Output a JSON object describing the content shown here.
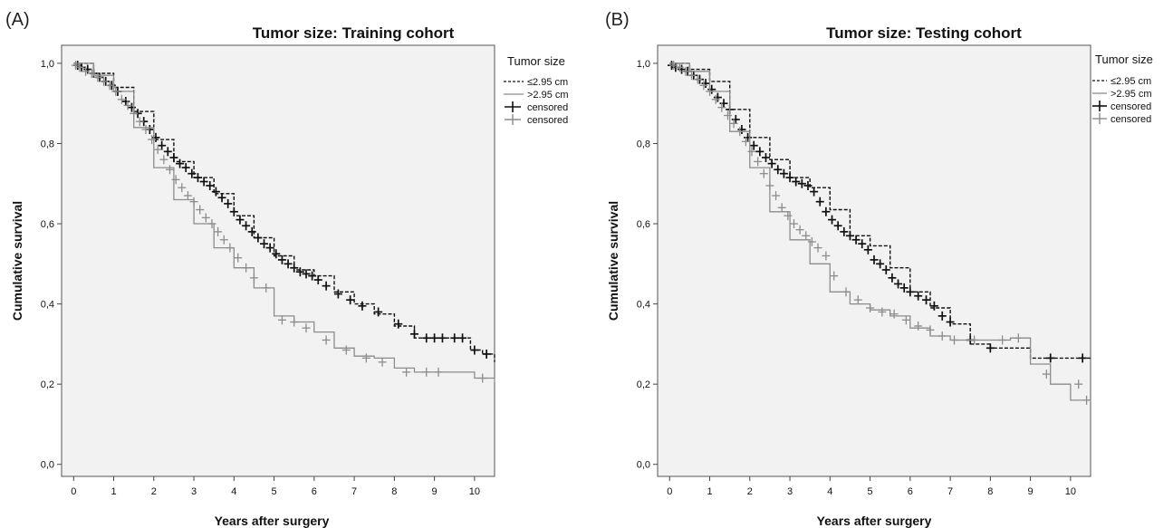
{
  "chart_data": [
    {
      "type": "line",
      "panel_label": "(A)",
      "title": "Tumor size: Training cohort",
      "xlabel": "Years after surgery",
      "ylabel": "Cumulative survival",
      "xlim": [
        -0.3,
        10.5
      ],
      "ylim": [
        -0.03,
        1.045
      ],
      "x_ticks": [
        "0",
        "1",
        "2",
        "3",
        "4",
        "5",
        "6",
        "7",
        "8",
        "9",
        "10"
      ],
      "y_ticks": [
        "0,0",
        "0,2",
        "0,4",
        "0,6",
        "0,8",
        "1,0"
      ],
      "legend": {
        "title": "Tumor size",
        "entries": [
          "≤2.95 cm",
          ">2.95 cm",
          "censored",
          "censored"
        ],
        "position": "right"
      },
      "plot_background": "#f2f2f2",
      "series": [
        {
          "name": "≤2.95 cm",
          "color": "#111111",
          "style": "dashed",
          "x": [
            0,
            0.5,
            1.0,
            1.5,
            2.0,
            2.5,
            3.0,
            3.5,
            4.0,
            4.5,
            5.0,
            5.5,
            6.0,
            6.5,
            7.0,
            7.5,
            8.0,
            8.5,
            9.0,
            9.5,
            9.9,
            10.2,
            10.5
          ],
          "y": [
            1.0,
            0.975,
            0.94,
            0.88,
            0.81,
            0.755,
            0.715,
            0.675,
            0.62,
            0.565,
            0.52,
            0.485,
            0.47,
            0.43,
            0.4,
            0.375,
            0.345,
            0.315,
            0.315,
            0.315,
            0.285,
            0.275,
            0.255
          ],
          "censored_x": [
            0.1,
            0.2,
            0.35,
            0.5,
            0.65,
            0.8,
            0.95,
            1.1,
            1.3,
            1.45,
            1.6,
            1.75,
            1.9,
            2.05,
            2.2,
            2.35,
            2.5,
            2.65,
            2.8,
            2.95,
            3.1,
            3.25,
            3.4,
            3.55,
            3.7,
            3.85,
            4.0,
            4.15,
            4.3,
            4.45,
            4.6,
            4.75,
            4.9,
            5.05,
            5.2,
            5.35,
            5.5,
            5.65,
            5.8,
            5.95,
            6.1,
            6.3,
            6.6,
            6.9,
            7.2,
            7.6,
            8.1,
            8.5,
            8.8,
            9.0,
            9.2,
            9.5,
            9.7,
            10.0,
            10.3
          ],
          "censored_y": [
            0.995,
            0.99,
            0.985,
            0.975,
            0.965,
            0.955,
            0.945,
            0.93,
            0.905,
            0.89,
            0.875,
            0.855,
            0.835,
            0.815,
            0.795,
            0.78,
            0.765,
            0.75,
            0.74,
            0.725,
            0.715,
            0.705,
            0.695,
            0.68,
            0.665,
            0.65,
            0.63,
            0.61,
            0.595,
            0.58,
            0.565,
            0.55,
            0.54,
            0.525,
            0.51,
            0.5,
            0.49,
            0.48,
            0.475,
            0.47,
            0.46,
            0.445,
            0.425,
            0.41,
            0.395,
            0.38,
            0.35,
            0.325,
            0.315,
            0.315,
            0.315,
            0.315,
            0.315,
            0.285,
            0.275
          ]
        },
        {
          "name": ">2.95 cm",
          "color": "#8c8c8c",
          "style": "solid",
          "x": [
            0,
            0.5,
            1.0,
            1.5,
            2.0,
            2.5,
            3.0,
            3.5,
            4.0,
            4.5,
            5.0,
            5.5,
            6.0,
            6.5,
            7.0,
            7.5,
            8.0,
            8.5,
            9.0,
            9.5,
            10.0,
            10.5
          ],
          "y": [
            1.0,
            0.97,
            0.93,
            0.84,
            0.74,
            0.66,
            0.6,
            0.54,
            0.49,
            0.44,
            0.37,
            0.355,
            0.33,
            0.29,
            0.27,
            0.265,
            0.24,
            0.23,
            0.23,
            0.23,
            0.215,
            0.205
          ],
          "censored_x": [
            0.05,
            0.15,
            0.3,
            0.45,
            0.6,
            0.75,
            0.9,
            1.05,
            1.2,
            1.35,
            1.5,
            1.65,
            1.8,
            1.95,
            2.1,
            2.25,
            2.4,
            2.55,
            2.7,
            2.85,
            3.0,
            3.15,
            3.3,
            3.45,
            3.6,
            3.75,
            3.9,
            4.1,
            4.3,
            4.5,
            4.8,
            5.2,
            5.5,
            5.8,
            6.3,
            6.8,
            7.3,
            7.7,
            8.3,
            8.8,
            9.1,
            10.2
          ],
          "censored_y": [
            0.995,
            0.99,
            0.98,
            0.975,
            0.965,
            0.955,
            0.945,
            0.93,
            0.91,
            0.895,
            0.875,
            0.855,
            0.835,
            0.81,
            0.785,
            0.76,
            0.735,
            0.71,
            0.69,
            0.67,
            0.655,
            0.635,
            0.615,
            0.6,
            0.58,
            0.56,
            0.54,
            0.515,
            0.49,
            0.465,
            0.44,
            0.36,
            0.355,
            0.34,
            0.31,
            0.285,
            0.265,
            0.255,
            0.23,
            0.23,
            0.23,
            0.215
          ]
        }
      ]
    },
    {
      "type": "line",
      "panel_label": "(B)",
      "title": "Tumor size: Testing cohort",
      "xlabel": "Years after surgery",
      "ylabel": "Cumulative survival",
      "xlim": [
        -0.3,
        10.5
      ],
      "ylim": [
        -0.03,
        1.045
      ],
      "x_ticks": [
        "0",
        "1",
        "2",
        "3",
        "4",
        "5",
        "6",
        "7",
        "8",
        "9",
        "10"
      ],
      "y_ticks": [
        "0,0",
        "0,2",
        "0,4",
        "0,6",
        "0,8",
        "1,0"
      ],
      "legend": {
        "title": "Tumor size",
        "entries": [
          "≤2.95 cm",
          ">2.95 cm",
          "censored",
          "censored"
        ],
        "position": "right"
      },
      "plot_background": "#f2f2f2",
      "series": [
        {
          "name": "≤2.95 cm",
          "color": "#111111",
          "style": "dashed",
          "x": [
            0,
            0.5,
            1.0,
            1.5,
            2.0,
            2.5,
            3.0,
            3.5,
            4.0,
            4.5,
            5.0,
            5.5,
            6.0,
            6.5,
            7.0,
            7.5,
            8.0,
            8.5,
            9.0,
            9.5,
            10.0,
            10.5
          ],
          "y": [
            1.0,
            0.985,
            0.955,
            0.885,
            0.815,
            0.76,
            0.715,
            0.69,
            0.635,
            0.57,
            0.545,
            0.49,
            0.43,
            0.39,
            0.35,
            0.3,
            0.29,
            0.29,
            0.265,
            0.265,
            0.265,
            0.265
          ],
          "censored_x": [
            0.05,
            0.15,
            0.3,
            0.45,
            0.6,
            0.75,
            0.9,
            1.05,
            1.2,
            1.35,
            1.5,
            1.65,
            1.8,
            1.95,
            2.1,
            2.25,
            2.4,
            2.55,
            2.7,
            2.85,
            3.0,
            3.15,
            3.3,
            3.45,
            3.6,
            3.75,
            3.9,
            4.05,
            4.2,
            4.35,
            4.5,
            4.65,
            4.8,
            4.95,
            5.1,
            5.25,
            5.4,
            5.55,
            5.7,
            5.85,
            6.0,
            6.2,
            6.4,
            6.6,
            6.8,
            7.0,
            7.5,
            8.0,
            9.5,
            10.3
          ],
          "censored_y": [
            0.995,
            0.99,
            0.985,
            0.98,
            0.97,
            0.96,
            0.95,
            0.935,
            0.915,
            0.9,
            0.885,
            0.86,
            0.835,
            0.815,
            0.795,
            0.78,
            0.765,
            0.75,
            0.735,
            0.725,
            0.715,
            0.705,
            0.7,
            0.695,
            0.68,
            0.655,
            0.63,
            0.61,
            0.595,
            0.58,
            0.57,
            0.56,
            0.55,
            0.535,
            0.51,
            0.5,
            0.485,
            0.465,
            0.45,
            0.44,
            0.43,
            0.42,
            0.41,
            0.395,
            0.37,
            0.355,
            0.31,
            0.29,
            0.265,
            0.265
          ]
        },
        {
          "name": ">2.95 cm",
          "color": "#8c8c8c",
          "style": "solid",
          "x": [
            0,
            0.5,
            1.0,
            1.5,
            2.0,
            2.5,
            3.0,
            3.5,
            4.0,
            4.5,
            5.0,
            5.5,
            6.0,
            6.5,
            7.0,
            7.5,
            8.0,
            8.5,
            9.0,
            9.5,
            10.0,
            10.5
          ],
          "y": [
            1.0,
            0.98,
            0.93,
            0.83,
            0.74,
            0.63,
            0.56,
            0.5,
            0.43,
            0.4,
            0.385,
            0.37,
            0.34,
            0.32,
            0.31,
            0.31,
            0.31,
            0.315,
            0.25,
            0.2,
            0.16,
            0.155
          ],
          "censored_x": [
            0.1,
            0.25,
            0.4,
            0.55,
            0.7,
            0.85,
            1.0,
            1.15,
            1.3,
            1.45,
            1.6,
            1.75,
            1.9,
            2.05,
            2.2,
            2.35,
            2.5,
            2.65,
            2.8,
            2.95,
            3.1,
            3.25,
            3.4,
            3.55,
            3.7,
            3.9,
            4.1,
            4.4,
            4.7,
            5.0,
            5.3,
            5.6,
            5.9,
            6.2,
            6.5,
            6.8,
            7.1,
            7.6,
            8.3,
            8.7,
            9.4,
            10.2,
            10.4
          ],
          "censored_y": [
            0.995,
            0.99,
            0.98,
            0.97,
            0.96,
            0.945,
            0.93,
            0.91,
            0.89,
            0.87,
            0.85,
            0.83,
            0.805,
            0.78,
            0.755,
            0.725,
            0.695,
            0.67,
            0.64,
            0.62,
            0.6,
            0.585,
            0.57,
            0.555,
            0.54,
            0.52,
            0.47,
            0.43,
            0.41,
            0.39,
            0.38,
            0.375,
            0.36,
            0.345,
            0.335,
            0.32,
            0.31,
            0.31,
            0.31,
            0.315,
            0.225,
            0.2,
            0.16
          ]
        }
      ]
    }
  ]
}
